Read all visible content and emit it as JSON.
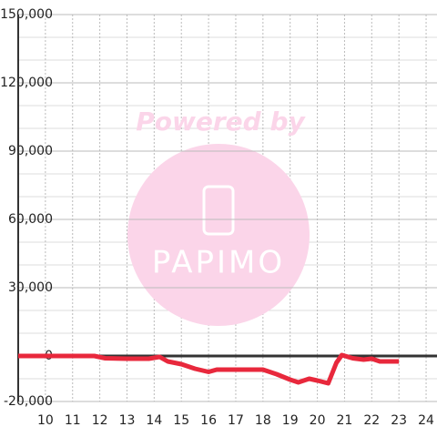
{
  "chart_data": {
    "type": "line",
    "watermark": [
      "Powered by",
      "PAPIMO"
    ],
    "x": [
      9,
      10,
      11,
      11.8,
      12.2,
      13,
      13.8,
      14.2,
      14.5,
      15,
      15.5,
      16,
      16.3,
      17,
      18,
      18.5,
      19,
      19.3,
      19.7,
      20,
      20.4,
      20.7,
      20.9,
      21.3,
      21.7,
      22,
      22.3,
      23
    ],
    "series": [
      {
        "color": "#e8283c",
        "values": [
          0,
          0,
          0,
          0,
          -1000,
          -1200,
          -1200,
          -400,
          -2400,
          -3600,
          -5600,
          -7000,
          -6000,
          -6000,
          -6000,
          -8000,
          -10400,
          -11600,
          -10000,
          -10800,
          -12000,
          -3000,
          400,
          -1000,
          -1600,
          -1200,
          -2400,
          -2400
        ]
      }
    ],
    "xlim": [
      9,
      24.4
    ],
    "xticks": [
      10,
      11,
      12,
      13,
      14,
      15,
      16,
      17,
      18,
      19,
      20,
      21,
      22,
      23,
      24
    ],
    "ylim": [
      -20000,
      150000
    ],
    "yticks": [
      {
        "value": -20000,
        "label": "-20,000"
      },
      0,
      {
        "value": 30000,
        "label": "30,000"
      },
      {
        "value": 60000,
        "label": "60,000"
      },
      {
        "value": 90000,
        "label": "90,000"
      },
      {
        "value": 120000,
        "label": "120,000"
      },
      {
        "value": 150000,
        "label": "150,000"
      }
    ],
    "y_minor_ticks": [
      -10000,
      10000,
      20000,
      40000,
      50000,
      70000,
      80000,
      100000,
      110000,
      130000,
      140000
    ],
    "grid": true
  }
}
